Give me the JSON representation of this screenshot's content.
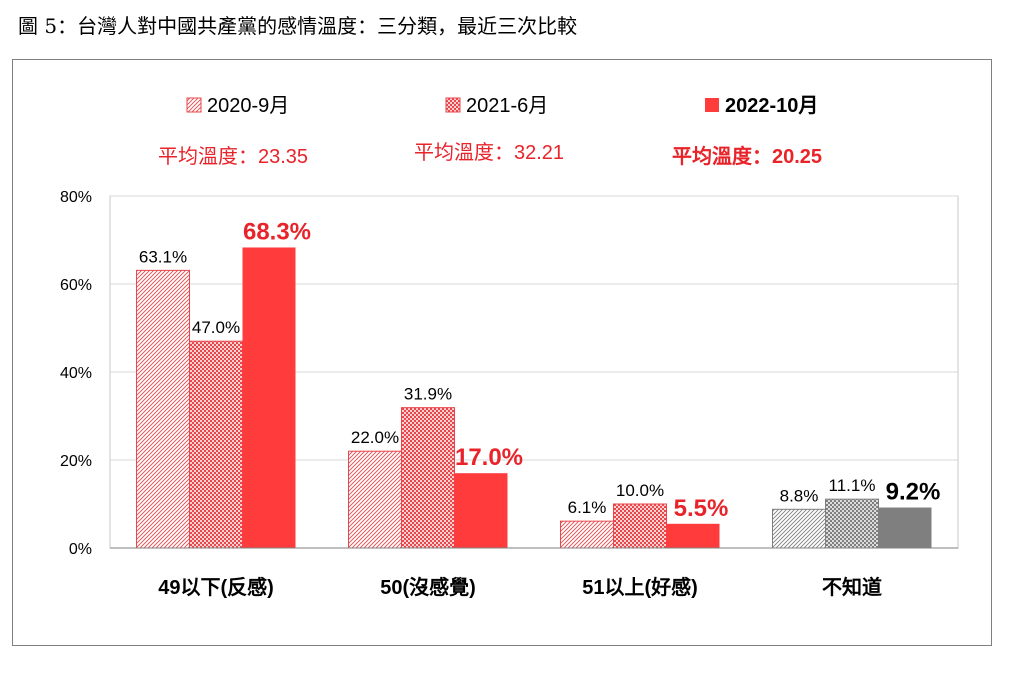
{
  "caption": "圖 5：台灣人對中國共產黨的感情溫度：三分類，最近三次比較",
  "chart_data": {
    "type": "bar",
    "categories": [
      "49以下(反感)",
      "50(沒感覺)",
      "51以上(好感)",
      "不知道"
    ],
    "series": [
      {
        "name": "2020-9月",
        "values": [
          63.1,
          22.0,
          6.1,
          8.8
        ],
        "labels": [
          "63.1%",
          "22.0%",
          "6.1%",
          "8.8%"
        ],
        "average": "平均溫度：23.35"
      },
      {
        "name": "2021-6月",
        "values": [
          47.0,
          31.9,
          10.0,
          11.1
        ],
        "labels": [
          "47.0%",
          "31.9%",
          "10.0%",
          "11.1%"
        ],
        "average": "平均溫度：32.21"
      },
      {
        "name": "2022-10月",
        "values": [
          68.3,
          17.0,
          5.5,
          9.2
        ],
        "labels": [
          "68.3%",
          "17.0%",
          "5.5%",
          "9.2%"
        ],
        "average": "平均溫度：20.25"
      }
    ],
    "yticks": [
      "0%",
      "20%",
      "40%",
      "60%",
      "80%"
    ],
    "ylim": [
      0,
      80
    ],
    "legend_position": "top",
    "colors": {
      "red": "#ff3b3b",
      "red_light": "#f2a3a3",
      "red_mid": "#e8595c",
      "gray": "#7f7f7f",
      "gray_light": "#b8b8b8",
      "gray_mid": "#9a9a9a",
      "highlight_text": "#e8232a"
    }
  }
}
